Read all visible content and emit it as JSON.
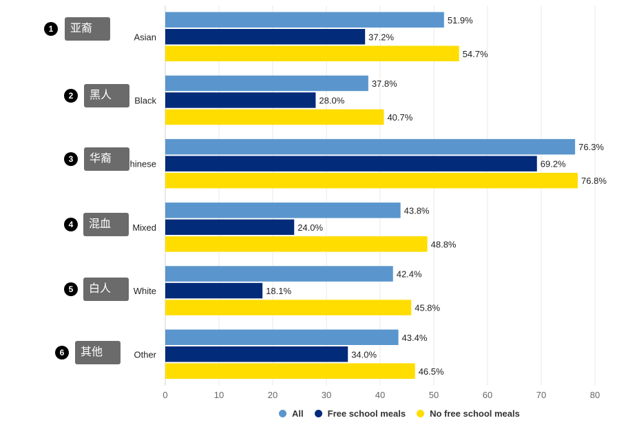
{
  "chart_data": {
    "type": "bar",
    "orientation": "horizontal",
    "categories": [
      "Asian",
      "Black",
      "Chinese",
      "Mixed",
      "White",
      "Other"
    ],
    "series": [
      {
        "name": "All",
        "color": "#5a96cd",
        "values": [
          51.9,
          37.8,
          76.3,
          43.8,
          42.4,
          43.4
        ]
      },
      {
        "name": "Free school meals",
        "color": "#022b7a",
        "values": [
          37.2,
          28.0,
          69.2,
          24.0,
          18.1,
          34.0
        ]
      },
      {
        "name": "No free school meals",
        "color": "#ffdd00",
        "values": [
          54.7,
          40.7,
          76.8,
          48.8,
          45.8,
          46.5
        ]
      }
    ],
    "data_labels": [
      [
        "51.9%",
        "37.8%",
        "76.3%",
        "43.8%",
        "42.4%",
        "43.4%"
      ],
      [
        "37.2%",
        "28.0%",
        "69.2%",
        "24.0%",
        "18.1%",
        "34.0%"
      ],
      [
        "54.7%",
        "40.7%",
        "76.8%",
        "48.8%",
        "45.8%",
        "46.5%"
      ]
    ],
    "xlim": [
      0,
      80
    ],
    "xticks": [
      0,
      10,
      20,
      30,
      40,
      50,
      60,
      70,
      80
    ],
    "grid": true,
    "legend": "bottom",
    "title": "",
    "xlabel": "",
    "ylabel": ""
  },
  "annotations": [
    {
      "num": "1",
      "text": "亚裔"
    },
    {
      "num": "2",
      "text": "黑人"
    },
    {
      "num": "3",
      "text": "华裔"
    },
    {
      "num": "4",
      "text": "混血"
    },
    {
      "num": "5",
      "text": "白人"
    },
    {
      "num": "6",
      "text": "其他"
    }
  ],
  "legend": [
    {
      "label": "All",
      "color": "#5a96cd"
    },
    {
      "label": "Free school meals",
      "color": "#022b7a"
    },
    {
      "label": "No free school meals",
      "color": "#ffdd00"
    }
  ]
}
